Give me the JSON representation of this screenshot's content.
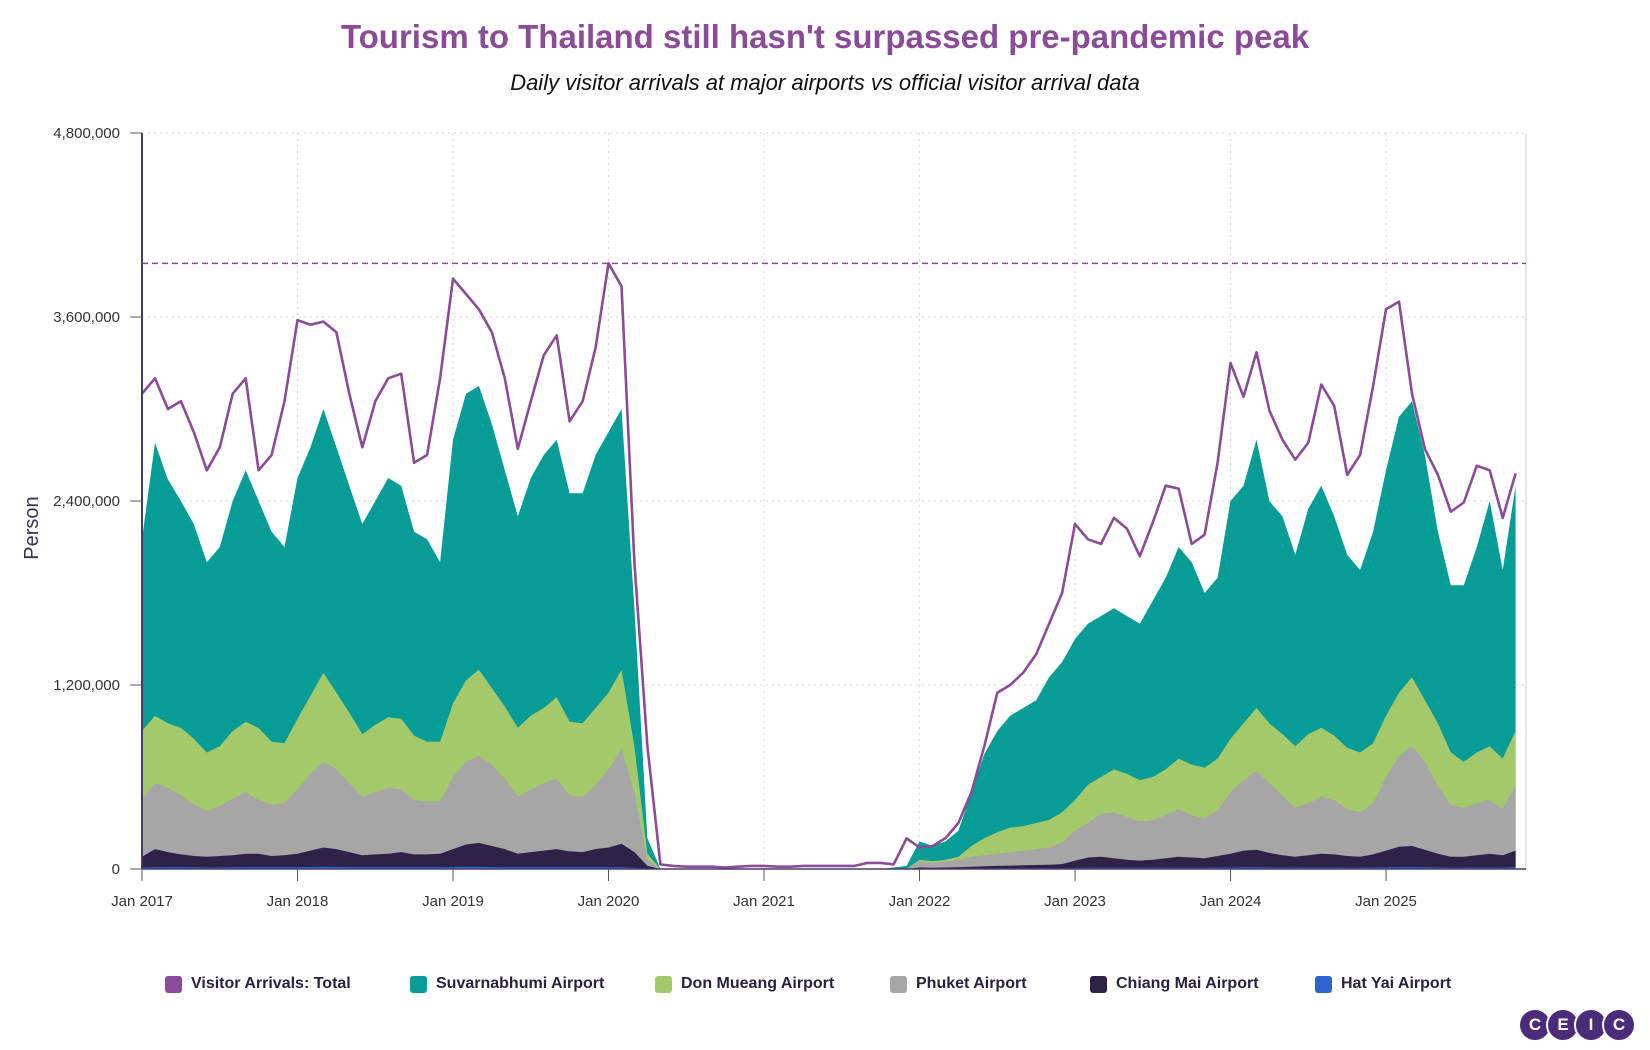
{
  "chart_data": {
    "type": "area",
    "title": "Tourism to Thailand still hasn't surpassed pre-pandemic peak",
    "subtitle": "Daily visitor arrivals at major airports vs official visitor arrival data",
    "ylabel": "Person",
    "xlabel": "",
    "ylim": [
      0,
      4800000
    ],
    "y_ticks": [
      {
        "value": 0,
        "label": "0"
      },
      {
        "value": 1200000,
        "label": "1,200,000"
      },
      {
        "value": 2400000,
        "label": "2,400,000"
      },
      {
        "value": 3600000,
        "label": "3,600,000"
      },
      {
        "value": 4800000,
        "label": "4,800,000"
      }
    ],
    "x_range": [
      2017.0,
      2025.9
    ],
    "x_ticks": [
      {
        "value": 2017,
        "label": "Jan 2017"
      },
      {
        "value": 2018,
        "label": "Jan 2018"
      },
      {
        "value": 2019,
        "label": "Jan 2019"
      },
      {
        "value": 2020,
        "label": "Jan 2020"
      },
      {
        "value": 2021,
        "label": "Jan 2021"
      },
      {
        "value": 2022,
        "label": "Jan 2022"
      },
      {
        "value": 2023,
        "label": "Jan 2023"
      },
      {
        "value": 2024,
        "label": "Jan 2024"
      },
      {
        "value": 2025,
        "label": "Jan 2025"
      }
    ],
    "grid": true,
    "reference_line": {
      "value": 3950000,
      "style": "dashed",
      "color": "#8A4C97"
    },
    "legend_position": "bottom",
    "x": [
      "2017-01",
      "2017-02",
      "2017-03",
      "2017-04",
      "2017-05",
      "2017-06",
      "2017-07",
      "2017-08",
      "2017-09",
      "2017-10",
      "2017-11",
      "2017-12",
      "2018-01",
      "2018-02",
      "2018-03",
      "2018-04",
      "2018-05",
      "2018-06",
      "2018-07",
      "2018-08",
      "2018-09",
      "2018-10",
      "2018-11",
      "2018-12",
      "2019-01",
      "2019-02",
      "2019-03",
      "2019-04",
      "2019-05",
      "2019-06",
      "2019-07",
      "2019-08",
      "2019-09",
      "2019-10",
      "2019-11",
      "2019-12",
      "2020-01",
      "2020-02",
      "2020-03",
      "2020-04",
      "2020-05",
      "2020-06",
      "2020-07",
      "2020-08",
      "2020-09",
      "2020-10",
      "2020-11",
      "2020-12",
      "2021-01",
      "2021-02",
      "2021-03",
      "2021-04",
      "2021-05",
      "2021-06",
      "2021-07",
      "2021-08",
      "2021-09",
      "2021-10",
      "2021-11",
      "2021-12",
      "2022-01",
      "2022-02",
      "2022-03",
      "2022-04",
      "2022-05",
      "2022-06",
      "2022-07",
      "2022-08",
      "2022-09",
      "2022-10",
      "2022-11",
      "2022-12",
      "2023-01",
      "2023-02",
      "2023-03",
      "2023-04",
      "2023-05",
      "2023-06",
      "2023-07",
      "2023-08",
      "2023-09",
      "2023-10",
      "2023-11",
      "2023-12",
      "2024-01",
      "2024-02",
      "2024-03",
      "2024-04",
      "2024-05",
      "2024-06",
      "2024-07",
      "2024-08",
      "2024-09",
      "2024-10",
      "2024-11",
      "2024-12",
      "2025-01",
      "2025-02",
      "2025-03",
      "2025-04",
      "2025-05",
      "2025-06",
      "2025-07",
      "2025-08",
      "2025-09",
      "2025-10",
      "2025-11"
    ],
    "series": [
      {
        "name": "Visitor Arrivals: Total",
        "color": "#8A4C97",
        "kind": "line",
        "values": [
          3100000,
          3200000,
          3000000,
          3050000,
          2850000,
          2600000,
          2750000,
          3100000,
          3200000,
          2600000,
          2700000,
          3050000,
          3580000,
          3550000,
          3570000,
          3500000,
          3100000,
          2750000,
          3050000,
          3200000,
          3230000,
          2650000,
          2700000,
          3200000,
          3850000,
          3750000,
          3650000,
          3500000,
          3200000,
          2740000,
          3050000,
          3350000,
          3480000,
          2920000,
          3050000,
          3400000,
          3950000,
          3800000,
          2000000,
          800000,
          30000,
          20000,
          15000,
          15000,
          15000,
          10000,
          15000,
          20000,
          20000,
          15000,
          15000,
          20000,
          20000,
          20000,
          20000,
          20000,
          40000,
          40000,
          30000,
          200000,
          140000,
          150000,
          200000,
          300000,
          500000,
          800000,
          1150000,
          1200000,
          1280000,
          1400000,
          1600000,
          1800000,
          2250000,
          2150000,
          2120000,
          2290000,
          2220000,
          2040000,
          2260000,
          2500000,
          2480000,
          2120000,
          2180000,
          2650000,
          3300000,
          3080000,
          3370000,
          2990000,
          2800000,
          2670000,
          2780000,
          3160000,
          3020000,
          2570000,
          2700000,
          3150000,
          3650000,
          3700000,
          3100000,
          2740000,
          2570000,
          2330000,
          2390000,
          2630000,
          2600000,
          2290000,
          2580000
        ]
      },
      {
        "name": "Suvarnabhumi Airport",
        "color": "#089C97",
        "kind": "area",
        "values": [
          2150000,
          2780000,
          2540000,
          2400000,
          2250000,
          2000000,
          2100000,
          2400000,
          2600000,
          2400000,
          2200000,
          2100000,
          2550000,
          2750000,
          3000000,
          2750000,
          2500000,
          2250000,
          2400000,
          2550000,
          2500000,
          2200000,
          2150000,
          2000000,
          2800000,
          3100000,
          3150000,
          2900000,
          2600000,
          2300000,
          2550000,
          2700000,
          2800000,
          2450000,
          2450000,
          2700000,
          2850000,
          3000000,
          1700000,
          200000,
          0,
          0,
          0,
          0,
          0,
          0,
          0,
          0,
          0,
          0,
          0,
          0,
          0,
          0,
          0,
          0,
          0,
          0,
          10000,
          20000,
          180000,
          150000,
          180000,
          250000,
          500000,
          750000,
          900000,
          1000000,
          1050000,
          1100000,
          1250000,
          1350000,
          1500000,
          1600000,
          1650000,
          1700000,
          1650000,
          1600000,
          1750000,
          1900000,
          2100000,
          2000000,
          1800000,
          1900000,
          2400000,
          2500000,
          2800000,
          2400000,
          2300000,
          2050000,
          2350000,
          2500000,
          2300000,
          2050000,
          1950000,
          2200000,
          2600000,
          2950000,
          3050000,
          2700000,
          2200000,
          1850000,
          1850000,
          2100000,
          2400000,
          1950000,
          2500000
        ]
      },
      {
        "name": "Don Mueang Airport",
        "color": "#A4C96A",
        "kind": "area",
        "values": [
          900000,
          1000000,
          950000,
          920000,
          850000,
          760000,
          800000,
          900000,
          960000,
          920000,
          830000,
          820000,
          980000,
          1130000,
          1280000,
          1150000,
          1020000,
          880000,
          940000,
          990000,
          980000,
          870000,
          830000,
          830000,
          1080000,
          1230000,
          1300000,
          1180000,
          1060000,
          920000,
          1000000,
          1050000,
          1120000,
          960000,
          950000,
          1050000,
          1150000,
          1300000,
          800000,
          100000,
          0,
          0,
          0,
          0,
          0,
          0,
          0,
          0,
          0,
          0,
          0,
          0,
          0,
          0,
          0,
          0,
          0,
          0,
          0,
          0,
          60000,
          50000,
          60000,
          80000,
          150000,
          200000,
          240000,
          270000,
          280000,
          300000,
          320000,
          370000,
          450000,
          550000,
          600000,
          650000,
          620000,
          580000,
          600000,
          650000,
          720000,
          680000,
          660000,
          720000,
          850000,
          950000,
          1050000,
          950000,
          880000,
          800000,
          880000,
          920000,
          870000,
          790000,
          760000,
          820000,
          1000000,
          1150000,
          1250000,
          1100000,
          950000,
          760000,
          700000,
          760000,
          800000,
          720000,
          900000
        ]
      },
      {
        "name": "Phuket Airport",
        "color": "#A6A6A6",
        "kind": "area",
        "values": [
          450000,
          560000,
          530000,
          480000,
          420000,
          380000,
          410000,
          460000,
          500000,
          450000,
          420000,
          430000,
          520000,
          620000,
          700000,
          650000,
          560000,
          470000,
          500000,
          530000,
          520000,
          450000,
          440000,
          440000,
          600000,
          700000,
          740000,
          680000,
          590000,
          470000,
          520000,
          560000,
          590000,
          480000,
          470000,
          550000,
          650000,
          780000,
          500000,
          60000,
          0,
          0,
          0,
          0,
          0,
          0,
          0,
          0,
          0,
          0,
          0,
          0,
          0,
          0,
          0,
          0,
          0,
          0,
          0,
          0,
          50000,
          40000,
          50000,
          60000,
          80000,
          90000,
          100000,
          110000,
          120000,
          130000,
          140000,
          170000,
          250000,
          300000,
          360000,
          370000,
          340000,
          310000,
          320000,
          350000,
          390000,
          350000,
          330000,
          380000,
          500000,
          580000,
          640000,
          560000,
          480000,
          400000,
          430000,
          470000,
          450000,
          390000,
          370000,
          430000,
          600000,
          740000,
          800000,
          700000,
          540000,
          420000,
          400000,
          430000,
          450000,
          390000,
          550000
        ]
      },
      {
        "name": "Chiang Mai Airport",
        "color": "#2E2347",
        "kind": "area",
        "values": [
          80000,
          130000,
          110000,
          95000,
          85000,
          80000,
          85000,
          90000,
          100000,
          100000,
          85000,
          90000,
          100000,
          120000,
          140000,
          130000,
          110000,
          90000,
          95000,
          100000,
          110000,
          95000,
          95000,
          100000,
          130000,
          160000,
          170000,
          150000,
          130000,
          100000,
          110000,
          120000,
          130000,
          115000,
          110000,
          130000,
          140000,
          165000,
          110000,
          20000,
          0,
          0,
          0,
          0,
          0,
          0,
          0,
          0,
          0,
          0,
          0,
          0,
          0,
          0,
          0,
          0,
          0,
          0,
          0,
          0,
          10000,
          8000,
          10000,
          12000,
          15000,
          18000,
          20000,
          22000,
          24000,
          26000,
          28000,
          32000,
          55000,
          75000,
          80000,
          70000,
          60000,
          55000,
          60000,
          70000,
          80000,
          75000,
          70000,
          85000,
          100000,
          120000,
          125000,
          105000,
          90000,
          80000,
          90000,
          100000,
          95000,
          85000,
          80000,
          95000,
          120000,
          145000,
          150000,
          125000,
          100000,
          80000,
          80000,
          90000,
          100000,
          90000,
          120000
        ]
      },
      {
        "name": "Hat Yai Airport",
        "color": "#2F63D0",
        "kind": "area",
        "values": [
          10000,
          12000,
          12000,
          11000,
          11000,
          10000,
          10000,
          11000,
          11000,
          11000,
          11000,
          11000,
          12000,
          13000,
          14000,
          13000,
          12000,
          11000,
          11000,
          12000,
          12000,
          11000,
          11000,
          12000,
          13000,
          14000,
          14000,
          13000,
          12000,
          11000,
          11000,
          12000,
          12000,
          11000,
          11000,
          12000,
          12000,
          12000,
          8000,
          2000,
          0,
          0,
          0,
          0,
          0,
          0,
          0,
          0,
          0,
          0,
          0,
          0,
          0,
          0,
          0,
          0,
          0,
          0,
          0,
          0,
          3000,
          3000,
          3000,
          3000,
          4000,
          4000,
          5000,
          5000,
          5000,
          5000,
          6000,
          6000,
          7000,
          8000,
          8000,
          8000,
          8000,
          8000,
          8000,
          9000,
          9000,
          9000,
          9000,
          10000,
          10000,
          11000,
          11000,
          10000,
          10000,
          9000,
          10000,
          10000,
          10000,
          9000,
          9000,
          10000,
          11000,
          12000,
          12000,
          11000,
          10000,
          9000,
          9000,
          10000,
          10000,
          9000,
          11000
        ]
      }
    ]
  },
  "legend": {
    "items": [
      {
        "label": "Visitor Arrivals: Total",
        "color": "#8A4C97"
      },
      {
        "label": "Suvarnabhumi Airport",
        "color": "#089C97"
      },
      {
        "label": "Don Mueang Airport",
        "color": "#A4C96A"
      },
      {
        "label": "Phuket Airport",
        "color": "#A6A6A6"
      },
      {
        "label": "Chiang Mai Airport",
        "color": "#2E2347"
      },
      {
        "label": "Hat Yai Airport",
        "color": "#2F63D0"
      }
    ]
  },
  "logo": {
    "letters": [
      "C",
      "E",
      "I",
      "C"
    ]
  }
}
